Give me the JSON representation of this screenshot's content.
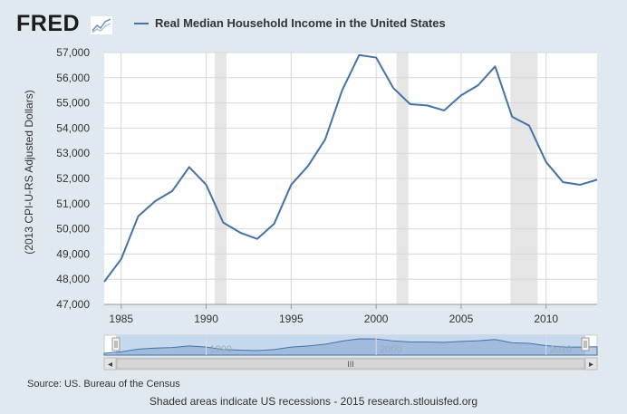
{
  "header": {
    "logo_text": "FRED",
    "logo_icon": "fred-chart-icon",
    "legend_label": "Real Median Household Income in the United States",
    "series_color": "#4572a7"
  },
  "chart_data": {
    "type": "line",
    "title": "Real Median Household Income in the United States",
    "xlabel": "",
    "ylabel": "(2013 CPI-U-RS Adjusted Dollars)",
    "xlim": [
      1984,
      2013
    ],
    "ylim": [
      47000,
      57000
    ],
    "x_ticks": [
      1985,
      1990,
      1995,
      2000,
      2005,
      2010
    ],
    "x_tick_labels": [
      "1985",
      "1990",
      "1995",
      "2000",
      "2005",
      "2010"
    ],
    "y_ticks": [
      47000,
      48000,
      49000,
      50000,
      51000,
      52000,
      53000,
      54000,
      55000,
      56000,
      57000
    ],
    "y_tick_labels": [
      "47,000",
      "48,000",
      "49,000",
      "50,000",
      "51,000",
      "52,000",
      "53,000",
      "54,000",
      "55,000",
      "56,000",
      "57,000"
    ],
    "grid": true,
    "recessions": [
      [
        1990.5,
        1991.2
      ],
      [
        2001.2,
        2001.9
      ],
      [
        2007.9,
        2009.5
      ]
    ],
    "series": [
      {
        "name": "Real Median Household Income in the United States",
        "x": [
          1984,
          1985,
          1986,
          1987,
          1988,
          1989,
          1990,
          1991,
          1992,
          1993,
          1994,
          1995,
          1996,
          1997,
          1998,
          1999,
          2000,
          2001,
          2002,
          2003,
          2004,
          2005,
          2006,
          2007,
          2008,
          2009,
          2010,
          2011,
          2012,
          2013
        ],
        "values": [
          47900,
          48800,
          50500,
          51100,
          51500,
          52450,
          51750,
          50250,
          49850,
          49600,
          50200,
          51750,
          52500,
          53550,
          55500,
          56900,
          56800,
          55600,
          54950,
          54900,
          54700,
          55300,
          55700,
          56450,
          54450,
          54100,
          52650,
          51850,
          51750,
          51950
        ]
      }
    ]
  },
  "navigator": {
    "tick_labels": [
      "1990",
      "2000",
      "2010"
    ],
    "tick_years": [
      1990,
      2000,
      2010
    ],
    "scroll_left_arrow": "◂",
    "scroll_right_arrow": "▸",
    "scroll_grip": "III"
  },
  "footer": {
    "source": "Source: US. Bureau of the Census",
    "note": "Shaded areas indicate US recessions - 2015 research.stlouisfed.org"
  }
}
